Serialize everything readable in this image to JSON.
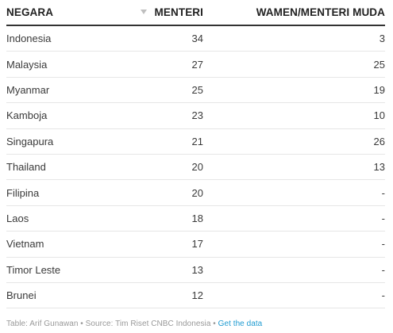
{
  "chart_data": {
    "type": "table",
    "columns": [
      "NEGARA",
      "MENTERI",
      "WAMEN/MENTERI MUDA"
    ],
    "sort_column": "MENTERI",
    "rows": [
      {
        "country": "Indonesia",
        "ministers": "34",
        "deputy": "3"
      },
      {
        "country": "Malaysia",
        "ministers": "27",
        "deputy": "25"
      },
      {
        "country": "Myanmar",
        "ministers": "25",
        "deputy": "19"
      },
      {
        "country": "Kamboja",
        "ministers": "23",
        "deputy": "10"
      },
      {
        "country": "Singapura",
        "ministers": "21",
        "deputy": "26"
      },
      {
        "country": "Thailand",
        "ministers": "20",
        "deputy": "13"
      },
      {
        "country": "Filipina",
        "ministers": "20",
        "deputy": "-"
      },
      {
        "country": "Laos",
        "ministers": "18",
        "deputy": "-"
      },
      {
        "country": "Vietnam",
        "ministers": "17",
        "deputy": "-"
      },
      {
        "country": "Timor Leste",
        "ministers": "13",
        "deputy": "-"
      },
      {
        "country": "Brunei",
        "ministers": "12",
        "deputy": "-"
      }
    ]
  },
  "footer": {
    "text": "Table: Arif Gunawan • Source: Tim Riset CNBC Indonesia • ",
    "link_label": "Get the data"
  },
  "colors": {
    "text": "#333333",
    "header_rule": "#333333",
    "row_rule": "#e6e6e6",
    "link": "#1f9bd1",
    "footer_text": "#999999",
    "sort_icon": "#bfbfbf"
  },
  "icons": {
    "sort": "sort-descending-icon"
  }
}
